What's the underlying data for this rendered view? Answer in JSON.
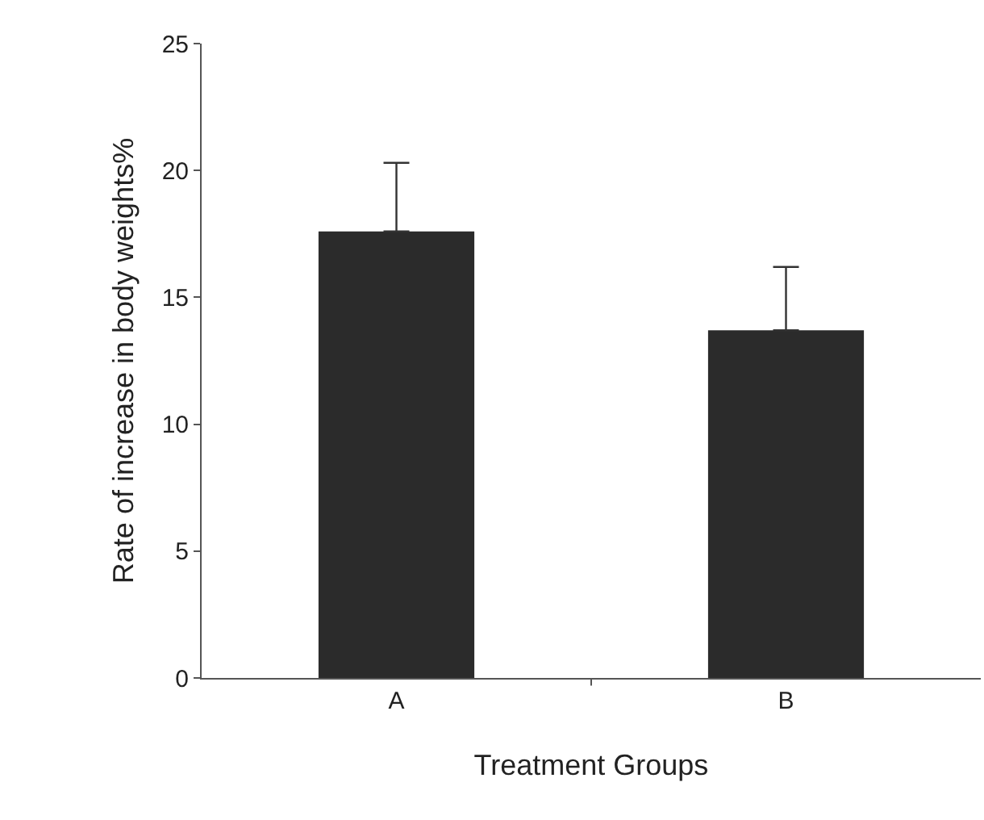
{
  "chart_data": {
    "type": "bar",
    "xlabel": "Treatment Groups",
    "ylabel": "Rate of increase in body weights%",
    "categories": [
      "A",
      "B"
    ],
    "values": [
      17.6,
      13.7
    ],
    "errors": [
      [
        17.6,
        20.3
      ],
      [
        13.7,
        16.2
      ]
    ],
    "color": "#2b2b2b",
    "ylim": [
      0,
      25
    ],
    "yticks": [
      0,
      5,
      10,
      15,
      20,
      25
    ],
    "grid": false
  }
}
